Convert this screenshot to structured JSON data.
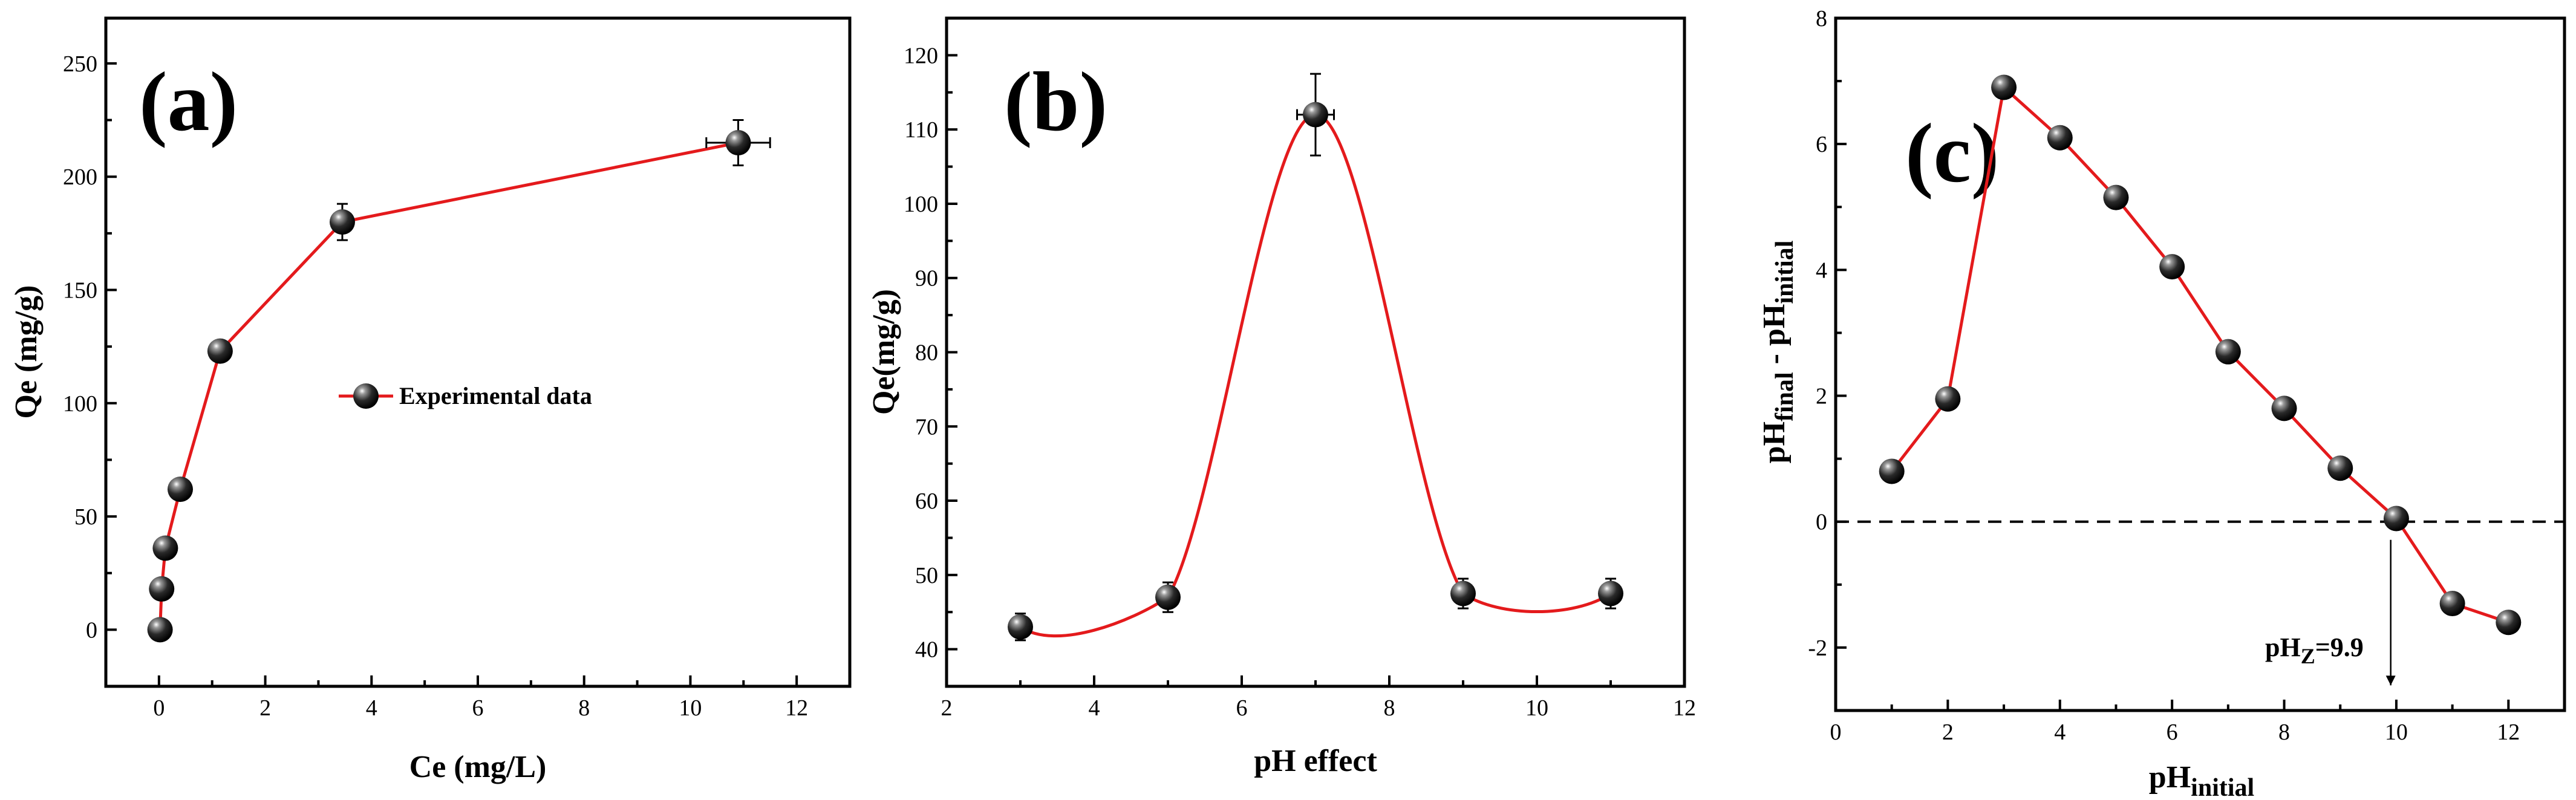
{
  "chart_data": [
    {
      "type": "line",
      "panel": "(a)",
      "xlabel": "Ce (mg/L)",
      "ylabel": "Qe (mg/g)",
      "xlim": [
        -1,
        13
      ],
      "ylim": [
        -25,
        270
      ],
      "xticks": [
        0,
        2,
        4,
        6,
        8,
        10,
        12
      ],
      "yticks": [
        0,
        50,
        100,
        150,
        200,
        250
      ],
      "legend": "Experimental data",
      "series": [
        {
          "name": "Experimental data",
          "x": [
            0.02,
            0.05,
            0.12,
            0.4,
            1.15,
            3.45,
            10.9
          ],
          "y": [
            0,
            18,
            36,
            62,
            123,
            180,
            215
          ],
          "yerr": [
            0,
            0,
            0,
            0,
            0,
            8,
            10
          ],
          "xerr": [
            0,
            0,
            0,
            0,
            0,
            0,
            0.6
          ]
        }
      ]
    },
    {
      "type": "line",
      "panel": "(b)",
      "xlabel": "pH effect",
      "ylabel": "Qe(mg/g)",
      "xlim": [
        2,
        12
      ],
      "ylim": [
        35,
        125
      ],
      "xticks": [
        2,
        4,
        6,
        8,
        10,
        12
      ],
      "yticks": [
        40,
        50,
        60,
        70,
        80,
        90,
        100,
        110,
        120
      ],
      "series": [
        {
          "name": "Qe",
          "x": [
            3,
            5,
            7,
            9,
            11
          ],
          "y": [
            43,
            47,
            112,
            47.5,
            47.5
          ],
          "yerr": [
            1.8,
            2,
            5.5,
            2,
            2
          ],
          "xerr": [
            0,
            0,
            0.25,
            0,
            0
          ]
        }
      ]
    },
    {
      "type": "line",
      "panel": "(c)",
      "xlabel": "pH",
      "xlabel_sub": "initial",
      "ylabel_parts": [
        "pH",
        "final",
        " - pH",
        "initial"
      ],
      "xlim": [
        0,
        13
      ],
      "ylim": [
        -3,
        8
      ],
      "xticks": [
        0,
        2,
        4,
        6,
        8,
        10,
        12
      ],
      "yticks": [
        -2,
        0,
        2,
        4,
        6,
        8
      ],
      "annotation": {
        "text": "pH",
        "sub": "Z",
        "suffix": "=9.9",
        "arrow_x": 9.9
      },
      "series": [
        {
          "name": "pHfinal - pHinitial",
          "x": [
            1,
            2,
            3,
            4,
            5,
            6,
            7,
            8,
            9,
            10,
            11,
            12
          ],
          "y": [
            0.8,
            1.95,
            6.9,
            6.1,
            5.15,
            4.05,
            2.7,
            1.8,
            0.85,
            0.05,
            -1.3,
            -1.6
          ]
        }
      ]
    }
  ]
}
